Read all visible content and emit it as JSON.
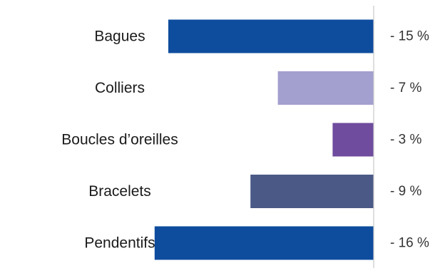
{
  "chart_data": {
    "type": "bar",
    "orientation": "horizontal",
    "title": "",
    "xlabel": "",
    "ylabel": "",
    "categories": [
      "Bagues",
      "Colliers",
      "Boucles d’oreilles",
      "Bracelets",
      "Pendentifs"
    ],
    "values": [
      -15,
      -7,
      -3,
      -9,
      -16
    ],
    "value_labels": [
      "- 15 %",
      "- 7 %",
      "- 3 %",
      "- 9 %",
      "- 16 %"
    ],
    "colors": [
      "#0E4C9E",
      "#A39FCF",
      "#6F4C9E",
      "#4A5986",
      "#0E4C9E"
    ],
    "xlim": [
      -16,
      0
    ],
    "grid": false,
    "legend": "none"
  }
}
